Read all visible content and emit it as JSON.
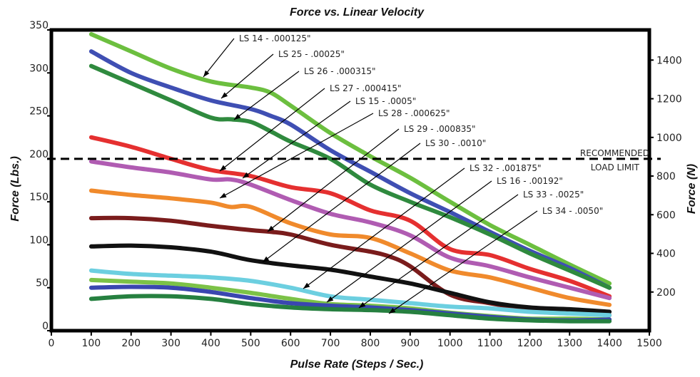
{
  "chart_data": {
    "type": "line",
    "title": "Force vs. Linear Velocity",
    "xlabel": "Pulse Rate (Steps / Sec.)",
    "ylabel": "Force (Lbs.)",
    "y2label": "Force (N)",
    "xlim": [
      0,
      1500
    ],
    "ylim": [
      0,
      350
    ],
    "y2lim": [
      0,
      1556
    ],
    "x_ticks": [
      "0",
      "100",
      "200",
      "300",
      "400",
      "500",
      "600",
      "700",
      "800",
      "900",
      "1000",
      "1100",
      "1200",
      "1300",
      "1400",
      "1500"
    ],
    "y_ticks": [
      "0",
      "50",
      "100",
      "150",
      "200",
      "250",
      "300",
      "350"
    ],
    "y2_ticks": [
      "200",
      "400",
      "600",
      "800",
      "1000",
      "1200",
      "1400"
    ],
    "grid": false,
    "reference_line": {
      "y": 200,
      "label_line1": "RECOMMENDED",
      "label_line2": "LOAD LIMIT"
    },
    "series": [
      {
        "name": "LS 14 - .000125\"",
        "color": "#6cbf3f",
        "x": [
          100,
          200,
          300,
          400,
          500,
          550,
          600,
          700,
          800,
          900,
          1000,
          1100,
          1200,
          1300,
          1400
        ],
        "y": [
          345,
          325,
          305,
          290,
          283,
          277,
          262,
          230,
          203,
          178,
          150,
          123,
          100,
          77,
          55
        ]
      },
      {
        "name": "LS 25 - .00025\"",
        "color": "#3f4fb3",
        "x": [
          100,
          200,
          300,
          400,
          500,
          550,
          600,
          700,
          800,
          900,
          1000,
          1100,
          1200,
          1300,
          1400
        ],
        "y": [
          325,
          300,
          283,
          268,
          258,
          250,
          240,
          210,
          185,
          160,
          138,
          115,
          93,
          73,
          50
        ]
      },
      {
        "name": "LS 26 - .000315\"",
        "color": "#2f8a3e",
        "x": [
          100,
          200,
          300,
          400,
          450,
          500,
          550,
          600,
          700,
          800,
          900,
          1000,
          1100,
          1200,
          1300,
          1400
        ],
        "y": [
          308,
          288,
          268,
          248,
          246,
          243,
          232,
          220,
          200,
          170,
          150,
          132,
          112,
          90,
          70,
          50
        ]
      },
      {
        "name": "LS 27 - .000415\"",
        "color": "#e53030",
        "x": [
          100,
          200,
          300,
          400,
          500,
          600,
          700,
          800,
          900,
          1000,
          1100,
          1200,
          1300,
          1400
        ],
        "y": [
          225,
          214,
          200,
          187,
          180,
          167,
          160,
          140,
          128,
          95,
          88,
          72,
          58,
          40
        ]
      },
      {
        "name": "LS 15 - .0005\"",
        "color": "#b05cb2",
        "x": [
          100,
          200,
          300,
          400,
          450,
          500,
          600,
          700,
          800,
          900,
          1000,
          1100,
          1200,
          1300,
          1400
        ],
        "y": [
          197,
          190,
          184,
          176,
          176,
          170,
          152,
          136,
          126,
          111,
          85,
          75,
          62,
          50,
          38
        ]
      },
      {
        "name": "LS 28 - .000625\"",
        "color": "#f08a2c",
        "x": [
          100,
          200,
          300,
          400,
          450,
          500,
          600,
          700,
          800,
          900,
          1000,
          1100,
          1200,
          1300,
          1400
        ],
        "y": [
          163,
          158,
          154,
          149,
          144,
          144,
          125,
          112,
          108,
          90,
          70,
          62,
          50,
          38,
          30
        ]
      },
      {
        "name": "LS 29 - .000835\"",
        "color": "#7a1c1c",
        "x": [
          100,
          200,
          300,
          400,
          500,
          550,
          600,
          700,
          800,
          850,
          900,
          1000,
          1100,
          1200,
          1300,
          1400
        ],
        "y": [
          131,
          131,
          128,
          122,
          117,
          115,
          112,
          100,
          92,
          86,
          75,
          42,
          32,
          25,
          22,
          18
        ]
      },
      {
        "name": "LS 30 - .0010\"",
        "color": "#111111",
        "x": [
          100,
          200,
          300,
          400,
          500,
          600,
          700,
          800,
          900,
          1000,
          1100,
          1200,
          1300,
          1400
        ],
        "y": [
          98,
          99,
          97,
          92,
          82,
          76,
          71,
          63,
          55,
          44,
          33,
          27,
          25,
          22
        ]
      },
      {
        "name": "LS 32 - .001875\"",
        "color": "#6ccfe0",
        "x": [
          100,
          200,
          300,
          400,
          500,
          600,
          700,
          800,
          900,
          1000,
          1100,
          1200,
          1300,
          1400
        ],
        "y": [
          70,
          66,
          64,
          62,
          58,
          50,
          40,
          36,
          32,
          28,
          26,
          22,
          20,
          18
        ]
      },
      {
        "name": "LS 16 - .00192\"",
        "color": "#7cc247",
        "x": [
          100,
          200,
          300,
          400,
          500,
          600,
          700,
          800,
          900,
          1000,
          1100,
          1200,
          1300,
          1400
        ],
        "y": [
          59,
          57,
          55,
          50,
          44,
          37,
          31,
          29,
          26,
          21,
          17,
          14,
          14,
          13
        ]
      },
      {
        "name": "LS 33 - .0025\"",
        "color": "#3a46b0",
        "x": [
          100,
          200,
          300,
          400,
          500,
          600,
          700,
          800,
          900,
          1000,
          1100,
          1200,
          1300,
          1400
        ],
        "y": [
          50,
          51,
          50,
          45,
          38,
          32,
          29,
          27,
          24,
          20,
          16,
          13,
          12,
          13
        ]
      },
      {
        "name": "LS 34 - .0050\"",
        "color": "#268040",
        "x": [
          100,
          200,
          300,
          400,
          500,
          600,
          700,
          800,
          900,
          1000,
          1100,
          1200,
          1300,
          1400
        ],
        "y": [
          37,
          40,
          40,
          37,
          31,
          27,
          25,
          24,
          22,
          18,
          14,
          12,
          11,
          11
        ]
      }
    ]
  }
}
